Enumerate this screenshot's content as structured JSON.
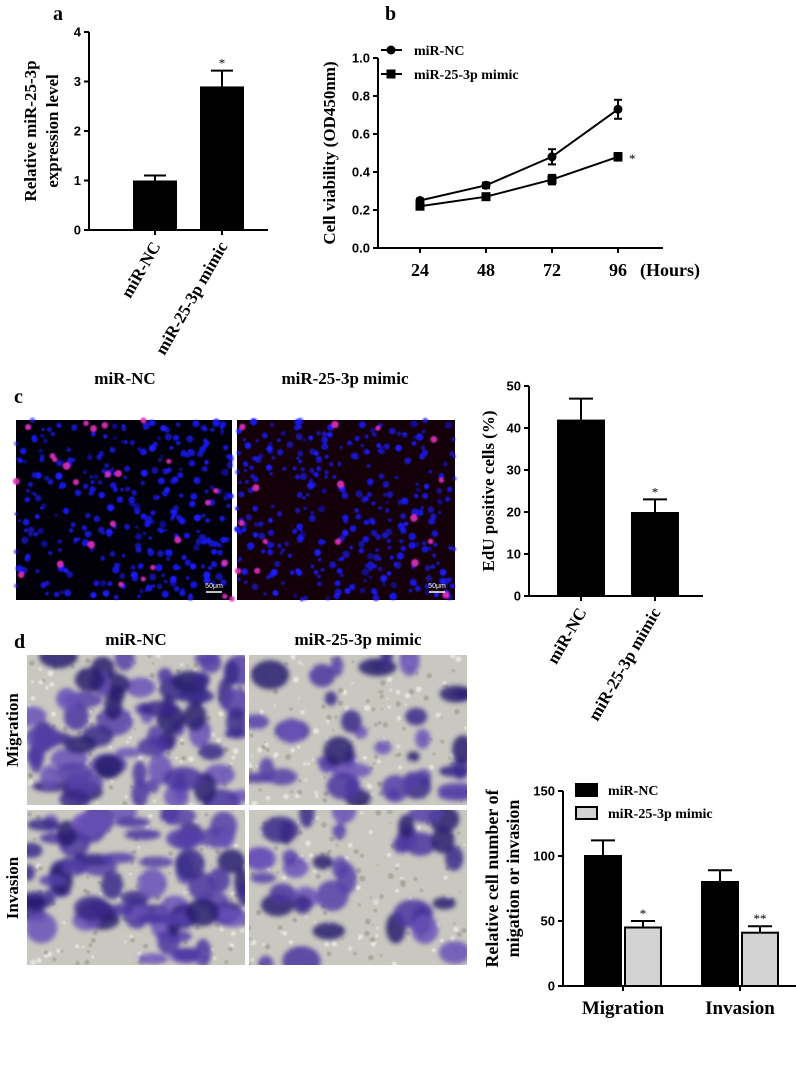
{
  "panels": {
    "a": {
      "label": "a"
    },
    "b": {
      "label": "b"
    },
    "c": {
      "label": "c",
      "image_titles": [
        "miR-NC",
        "miR-25-3p mimic"
      ],
      "scale_bar": "50μm"
    },
    "d": {
      "label": "d",
      "image_titles": [
        "miR-NC",
        "miR-25-3p mimic"
      ],
      "row_labels": [
        "Migration",
        "Invasion"
      ]
    }
  },
  "colors": {
    "nc": "#000000",
    "mimic": "#d3d3d3",
    "dapi": "#1a1aff",
    "edu": "#e030c0",
    "crystal_violet": "#5a3fa0"
  },
  "chart_data": [
    {
      "id": "a",
      "type": "bar",
      "ylabel": [
        "Relative miR-25-3p",
        "expression level"
      ],
      "ylim": [
        0,
        4
      ],
      "yticks": [
        0,
        1,
        2,
        3,
        4
      ],
      "categories": [
        "miR-NC",
        "miR-25-3p mimic"
      ],
      "values": [
        1.0,
        2.9
      ],
      "errors": [
        0.1,
        0.32
      ],
      "annotations": [
        "",
        "*"
      ]
    },
    {
      "id": "b",
      "type": "line",
      "ylabel": "Cell viability (OD450nm)",
      "ylim": [
        0,
        1.0
      ],
      "yticks": [
        "0.0",
        "0.2",
        "0.4",
        "0.6",
        "0.8",
        "1.0"
      ],
      "x": [
        24,
        48,
        72,
        96
      ],
      "xtick_labels": [
        "24",
        "48",
        "72",
        "96"
      ],
      "xunit": "(Hours)",
      "legend": "top-left",
      "series": [
        {
          "name": "miR-NC",
          "marker": "circle",
          "values": [
            0.25,
            0.33,
            0.48,
            0.73
          ],
          "errors": [
            0.01,
            0.015,
            0.04,
            0.05
          ]
        },
        {
          "name": "miR-25-3p mimic",
          "marker": "square",
          "values": [
            0.22,
            0.27,
            0.36,
            0.48
          ],
          "errors": [
            0.01,
            0.015,
            0.025,
            0.02
          ]
        }
      ],
      "annotations": [
        {
          "series": 1,
          "x": 96,
          "text": "*"
        }
      ]
    },
    {
      "id": "c",
      "type": "bar",
      "ylabel": "EdU positive cells (%)",
      "ylim": [
        0,
        50
      ],
      "yticks": [
        0,
        10,
        20,
        30,
        40,
        50
      ],
      "categories": [
        "miR-NC",
        "miR-25-3p mimic"
      ],
      "values": [
        42,
        20
      ],
      "errors": [
        5,
        3
      ],
      "annotations": [
        "",
        "*"
      ]
    },
    {
      "id": "d",
      "type": "bar",
      "ylabel": [
        "Relative cell number of",
        "migation or invasion"
      ],
      "ylim": [
        0,
        150
      ],
      "yticks": [
        0,
        50,
        100,
        150
      ],
      "categories": [
        "Migration",
        "Invasion"
      ],
      "legend": "top-left",
      "series": [
        {
          "name": "miR-NC",
          "values": [
            100,
            80
          ],
          "errors": [
            12,
            9
          ],
          "annotations": [
            "",
            ""
          ]
        },
        {
          "name": "miR-25-3p mimic",
          "values": [
            45,
            41
          ],
          "errors": [
            5,
            5
          ],
          "annotations": [
            "*",
            "**"
          ]
        }
      ]
    }
  ]
}
